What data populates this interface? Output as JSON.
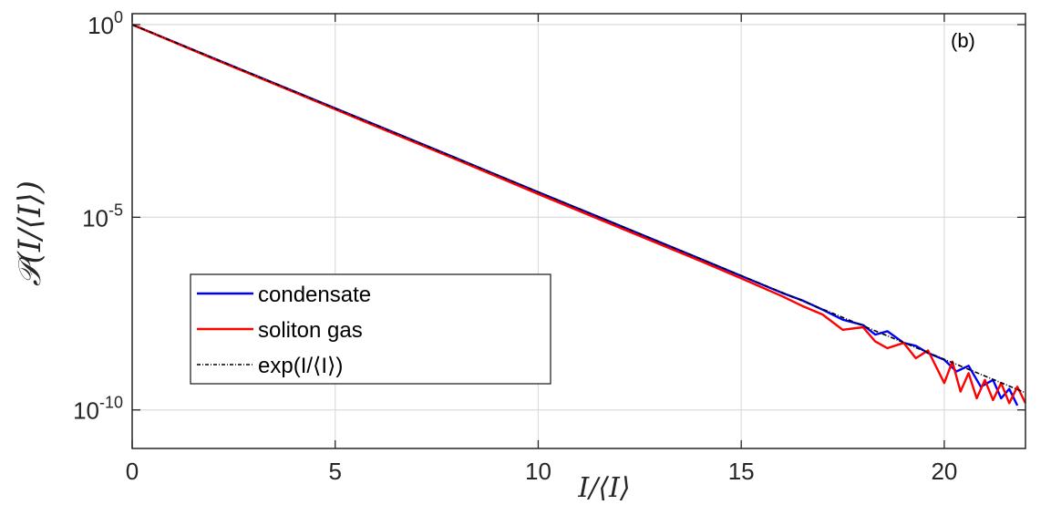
{
  "chart_data": {
    "type": "line",
    "annotation": "(b)",
    "xlabel": "I/⟨I⟩",
    "ylabel": "𝒫(I/⟨I⟩)",
    "xlim": [
      0,
      22
    ],
    "ylim": [
      1e-11,
      1
    ],
    "y_scale": "log",
    "grid": true,
    "x_ticks": [
      0,
      5,
      10,
      15,
      20
    ],
    "x_tick_labels": [
      "0",
      "5",
      "10",
      "15",
      "20"
    ],
    "y_ticks": [
      {
        "value": 1,
        "base": "10",
        "exp": "0"
      },
      {
        "value": 1e-05,
        "base": "10",
        "exp": "-5"
      },
      {
        "value": 1e-10,
        "base": "10",
        "exp": "-10"
      }
    ],
    "legend_position": "lower-left",
    "series": [
      {
        "name": "condensate",
        "color": "#0000ff",
        "style": "solid",
        "x": [
          0,
          2,
          4,
          6,
          8,
          10,
          12,
          14,
          15,
          16,
          16.5,
          17,
          17.5,
          18,
          18.3,
          18.6,
          19,
          19.3,
          19.6,
          20,
          20.3,
          20.6,
          20.9,
          21.2,
          21.4,
          21.6,
          21.8
        ],
        "y": [
          1,
          0.135,
          0.0183,
          0.00248,
          0.000335,
          4.5e-05,
          6.1e-06,
          8.3e-07,
          3e-07,
          1.1e-07,
          7e-08,
          4e-08,
          2.2e-08,
          1.6e-08,
          9e-09,
          1.1e-08,
          5.5e-09,
          4.6e-09,
          3e-09,
          2e-09,
          1e-09,
          1.4e-09,
          4e-10,
          6e-10,
          2e-10,
          3.5e-10,
          1.3e-10
        ]
      },
      {
        "name": "soliton gas",
        "color": "#ff0000",
        "style": "solid",
        "x": [
          0,
          2,
          4,
          6,
          8,
          10,
          12,
          14,
          15,
          16,
          16.5,
          17,
          17.5,
          18,
          18.3,
          18.6,
          19,
          19.3,
          19.6,
          20,
          20.2,
          20.4,
          20.6,
          20.8,
          21,
          21.2,
          21.4,
          21.6,
          21.8,
          22
        ],
        "y": [
          1,
          0.13,
          0.0175,
          0.0023,
          0.00031,
          4e-05,
          5.4e-06,
          7.3e-07,
          2.6e-07,
          9e-08,
          5e-08,
          3e-08,
          1.2e-08,
          1.4e-08,
          6e-09,
          4e-09,
          5.5e-09,
          2.2e-09,
          3.5e-09,
          5e-10,
          1.8e-09,
          3e-10,
          9e-10,
          2e-10,
          6e-10,
          1.8e-10,
          5e-10,
          1.5e-10,
          4e-10,
          1.5e-10
        ]
      },
      {
        "name": "exp(I/⟨I⟩)",
        "color": "#000000",
        "style": "dashdot",
        "function": "exp(-x)",
        "x": [
          0,
          22
        ],
        "y": [
          1,
          2.8e-10
        ]
      }
    ]
  }
}
